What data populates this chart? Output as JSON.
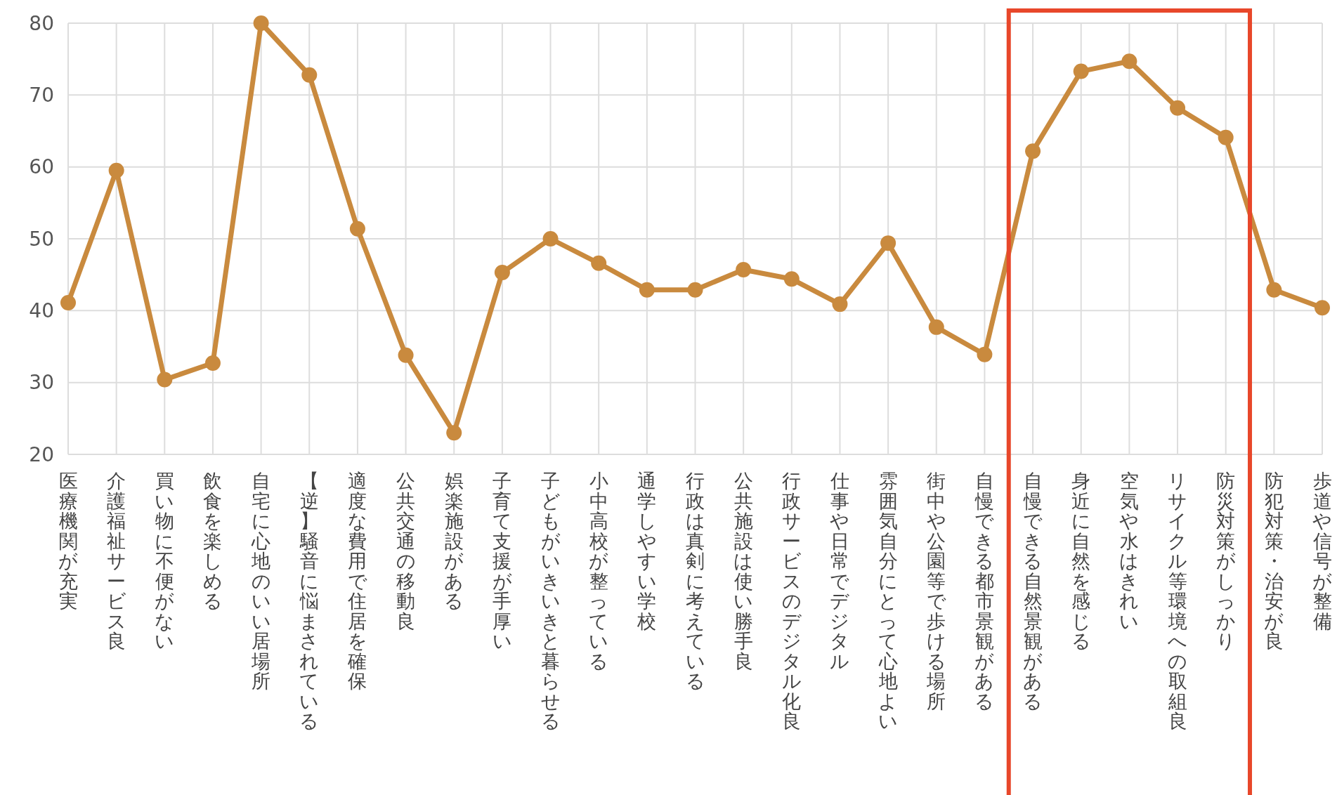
{
  "chart_data": {
    "type": "line",
    "categories": [
      "医療機関が充実",
      "介護福祉サービス良",
      "買い物に不便がない",
      "飲食を楽しめる",
      "自宅に心地のいい居場所",
      "【逆】騒音に悩まされている",
      "適度な費用で住居を確保",
      "公共交通の移動良",
      "娯楽施設がある",
      "子育て支援が手厚い",
      "子どもがいきいきと暮らせる",
      "小中高校が整っている",
      "通学しやすい学校",
      "行政は真剣に考えている",
      "公共施設は使い勝手良",
      "行政サービスのデジタル化良",
      "仕事や日常でデジタル",
      "雰囲気自分にとって心地よい",
      "街中や公園等で歩ける場所",
      "自慢できる都市景観がある",
      "自慢できる自然景観がある",
      "身近に自然を感じる",
      "空気や水はきれい",
      "リサイクル等環境への取組良",
      "防災対策がしっかり",
      "防犯対策・治安が良",
      "歩道や信号が整備"
    ],
    "series": [
      {
        "color": "#c98a3e",
        "values": [
          41.1,
          59.5,
          30.4,
          32.7,
          80,
          72.8,
          51.4,
          33.8,
          23,
          45.3,
          50,
          46.6,
          42.9,
          42.9,
          45.7,
          44.4,
          40.9,
          49.4,
          37.7,
          33.9,
          62.2,
          73.3,
          74.7,
          68.2,
          64.1,
          42.9,
          40.4
        ]
      }
    ],
    "ylim": [
      20,
      80
    ],
    "yticks": [
      20,
      30,
      40,
      50,
      60,
      70,
      80
    ],
    "grid": true,
    "marker": "circle",
    "line_style": "solid"
  }
}
